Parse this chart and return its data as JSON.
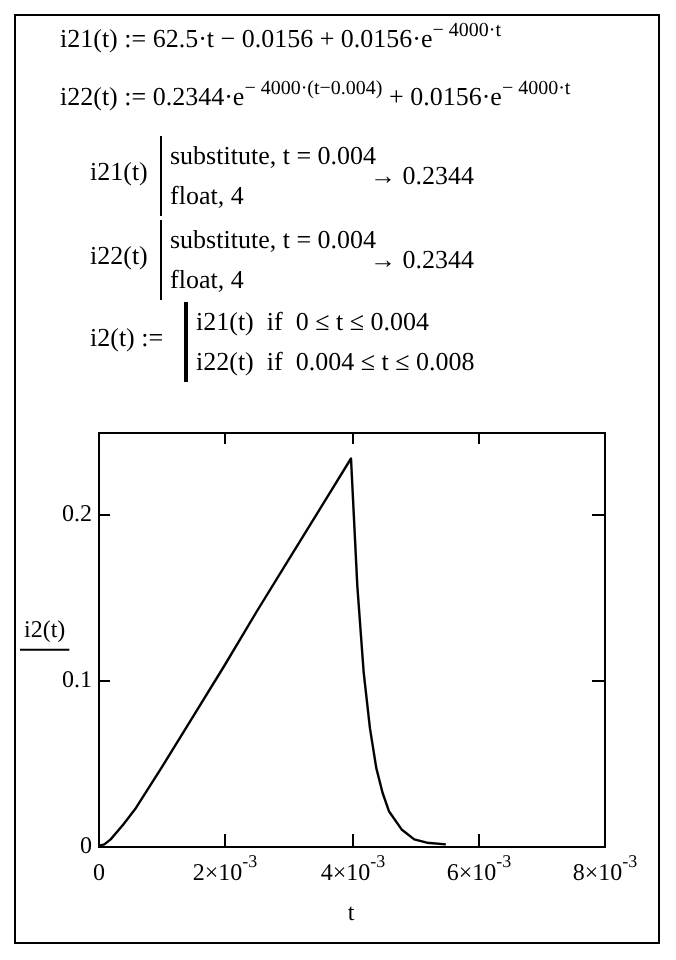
{
  "chart_data": {
    "type": "line",
    "annotations": [
      "i21(t) := 62.5·t − 0.0156 + 0.0156·e$^{− 4000·t}$",
      "i22(t) := 0.2344·e$^{− 4000·(t−0.004)}$ + 0.0156·e$^{− 4000·t}$",
      "i21(t)",
      "substitute, t = 0.004",
      "float, 4",
      "→ 0.2344",
      "i22(t)",
      "substitute, t = 0.004",
      "float, 4",
      "→ 0.2344",
      "i2(t) :=",
      "i21(t)  if  0 ≤ t ≤ 0.004",
      "i22(t)  if  0.004 ≤ t ≤ 0.008"
    ],
    "xlabel": "t",
    "ylabel": "i2(t)",
    "x": [
      0,
      0.0001,
      0.0002,
      0.0004,
      0.0006,
      0.001,
      0.0015,
      0.002,
      0.0025,
      0.003,
      0.0035,
      0.004,
      0.0041,
      0.0042,
      0.0043,
      0.0044,
      0.0045,
      0.0046,
      0.0048,
      0.005,
      0.0052,
      0.0055
    ],
    "series": [
      {
        "color": "#000000",
        "values": [
          0,
          0.001,
          0.004,
          0.013,
          0.023,
          0.047,
          0.078,
          0.109,
          0.141,
          0.172,
          0.203,
          0.234,
          0.157,
          0.105,
          0.071,
          0.047,
          0.032,
          0.021,
          0.01,
          0.004,
          0.002,
          0.001
        ]
      }
    ],
    "xlim": [
      0,
      0.008
    ],
    "xticks": [
      0,
      {
        "value": 0.002,
        "label": "2×10$^{-3}$"
      },
      {
        "value": 0.004,
        "label": "4×10$^{-3}$"
      },
      {
        "value": 0.006,
        "label": "6×10$^{-3}$"
      },
      {
        "value": 0.008,
        "label": "8×10$^{-3}$"
      }
    ],
    "ylim": [
      0,
      0.25
    ],
    "yticks": [
      0,
      0.1,
      0.2
    ],
    "grid": false,
    "legend": false,
    "marker": "none"
  }
}
